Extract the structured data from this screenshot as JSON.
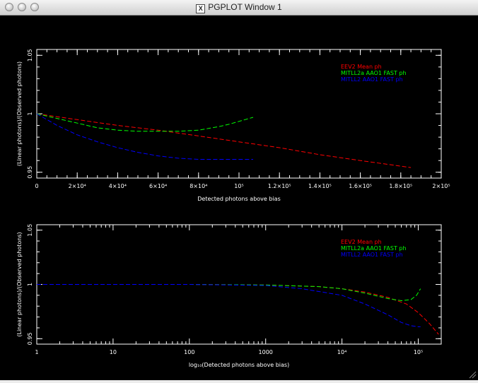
{
  "window": {
    "title": "PGPLOT Window 1"
  },
  "chart_data": [
    {
      "type": "line",
      "title": "",
      "xlabel": "Detected photons above bias",
      "ylabel": "(Linear photons)/(Observed photons)",
      "xlim": [
        0,
        200000
      ],
      "ylim": [
        0.945,
        1.055
      ],
      "x_ticks": [
        {
          "value": 0,
          "label": "0"
        },
        {
          "value": 20000,
          "label": "2×10⁴"
        },
        {
          "value": 40000,
          "label": "4×10⁴"
        },
        {
          "value": 60000,
          "label": "6×10⁴"
        },
        {
          "value": 80000,
          "label": "8×10⁴"
        },
        {
          "value": 100000,
          "label": "10⁵"
        },
        {
          "value": 120000,
          "label": "1.2×10⁵"
        },
        {
          "value": 140000,
          "label": "1.4×10⁵"
        },
        {
          "value": 160000,
          "label": "1.6×10⁵"
        },
        {
          "value": 180000,
          "label": "1.8×10⁵"
        },
        {
          "value": 200000,
          "label": "2×10⁵"
        }
      ],
      "y_ticks": [
        {
          "value": 0.95,
          "label": "0.95"
        },
        {
          "value": 1.0,
          "label": "1"
        },
        {
          "value": 1.05,
          "label": "1.05"
        }
      ],
      "legend_position": "top-right",
      "series": [
        {
          "name": "EEV2 Mean    ph",
          "color": "#ff0000",
          "x": [
            0,
            20000,
            40000,
            60000,
            80000,
            100000,
            120000,
            140000,
            160000,
            185000
          ],
          "y": [
            1.0,
            0.995,
            0.99,
            0.986,
            0.981,
            0.976,
            0.971,
            0.965,
            0.96,
            0.954
          ]
        },
        {
          "name": "MITLL2a AAO1  FAST ph",
          "color": "#00ff00",
          "x": [
            0,
            10000,
            20000,
            30000,
            40000,
            50000,
            60000,
            70000,
            80000,
            90000,
            95000,
            107000
          ],
          "y": [
            1.0,
            0.996,
            0.992,
            0.988,
            0.986,
            0.985,
            0.985,
            0.985,
            0.986,
            0.989,
            0.991,
            0.997
          ]
        },
        {
          "name": "MITLL2 AAO1  FAST ph",
          "color": "#0000ff",
          "x": [
            0,
            10000,
            20000,
            30000,
            40000,
            50000,
            60000,
            70000,
            80000,
            90000,
            100000,
            107000
          ],
          "y": [
            1.0,
            0.99,
            0.982,
            0.976,
            0.971,
            0.967,
            0.964,
            0.962,
            0.961,
            0.961,
            0.961,
            0.961
          ]
        }
      ]
    },
    {
      "type": "line",
      "title": "",
      "xlabel": "log₁₀(Detected photons above bias)",
      "ylabel": "(Linear photons)/(Observed photons)",
      "xscale": "log",
      "xlim": [
        1,
        200000
      ],
      "ylim": [
        0.945,
        1.055
      ],
      "x_ticks": [
        {
          "value": 1,
          "label": "1"
        },
        {
          "value": 10,
          "label": "10"
        },
        {
          "value": 100,
          "label": "100"
        },
        {
          "value": 1000,
          "label": "1000"
        },
        {
          "value": 10000,
          "label": "10⁴"
        },
        {
          "value": 100000,
          "label": "10⁵"
        }
      ],
      "y_ticks": [
        {
          "value": 0.95,
          "label": "0.95"
        },
        {
          "value": 1.0,
          "label": "1"
        },
        {
          "value": 1.05,
          "label": "1.05"
        }
      ],
      "legend_position": "top-right",
      "series": [
        {
          "name": "EEV2 Mean    ph",
          "color": "#ff0000",
          "x": [
            1,
            10,
            100,
            1000,
            5000,
            10000,
            20000,
            40000,
            70000,
            100000,
            140000,
            185000
          ],
          "y": [
            1.0,
            1.0,
            1.0,
            0.9995,
            0.998,
            0.996,
            0.993,
            0.988,
            0.982,
            0.974,
            0.964,
            0.954
          ]
        },
        {
          "name": "MITLL2a AAO1  FAST ph",
          "color": "#00ff00",
          "x": [
            1,
            10,
            100,
            1000,
            5000,
            10000,
            20000,
            40000,
            60000,
            80000,
            95000,
            107000
          ],
          "y": [
            1.0,
            1.0,
            1.0,
            0.9995,
            0.998,
            0.996,
            0.992,
            0.987,
            0.985,
            0.986,
            0.99,
            0.996
          ]
        },
        {
          "name": "MITLL2 AAO1  FAST ph",
          "color": "#0000ff",
          "x": [
            1,
            10,
            100,
            1000,
            3000,
            10000,
            20000,
            40000,
            60000,
            80000,
            100000,
            107000
          ],
          "y": [
            1.0,
            1.0,
            1.0,
            0.999,
            0.996,
            0.99,
            0.982,
            0.972,
            0.965,
            0.962,
            0.961,
            0.961
          ]
        }
      ]
    }
  ]
}
